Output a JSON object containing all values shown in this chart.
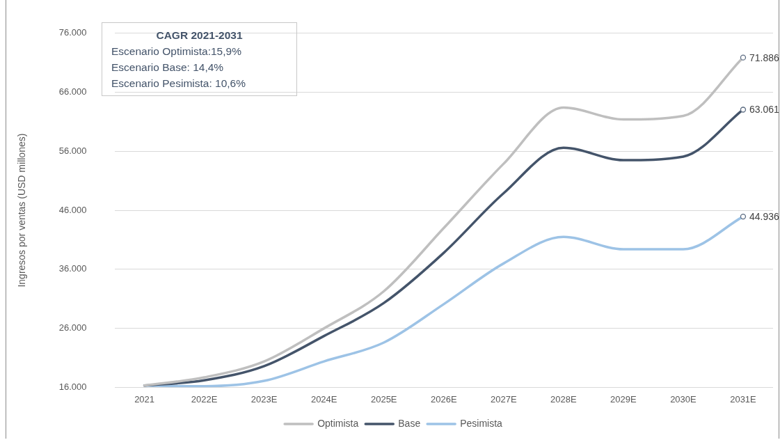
{
  "chart_data": {
    "type": "line",
    "ylabel": "Ingresos por ventas (USD millones)",
    "categories": [
      "2021",
      "2022E",
      "2023E",
      "2024E",
      "2025E",
      "2026E",
      "2027E",
      "2028E",
      "2029E",
      "2030E",
      "2031E"
    ],
    "series": [
      {
        "name": "Optimista",
        "color": "#bfbfbf",
        "values": [
          16300,
          17700,
          20400,
          26000,
          32300,
          43000,
          53900,
          63400,
          61400,
          62000,
          71886
        ],
        "value_labels": [
          null,
          null,
          null,
          null,
          null,
          null,
          null,
          null,
          null,
          null,
          "71.886"
        ]
      },
      {
        "name": "Base",
        "color": "#44546a",
        "values": [
          16300,
          17200,
          19600,
          24700,
          30300,
          38800,
          48900,
          56600,
          54500,
          55100,
          63061
        ],
        "value_labels": [
          null,
          null,
          null,
          null,
          null,
          null,
          null,
          null,
          null,
          null,
          "63.061"
        ]
      },
      {
        "name": "Pesimista",
        "color": "#9dc3e6",
        "values": [
          16300,
          16200,
          17100,
          20400,
          23600,
          30100,
          37000,
          41500,
          39400,
          39400,
          44936
        ],
        "value_labels": [
          null,
          null,
          null,
          null,
          null,
          null,
          null,
          null,
          null,
          null,
          "44.936"
        ]
      }
    ],
    "ylim": [
      16000,
      76000
    ],
    "yticks": [
      {
        "value": 16000,
        "label": "16.000"
      },
      {
        "value": 26000,
        "label": "26.000"
      },
      {
        "value": 36000,
        "label": "36.000"
      },
      {
        "value": 46000,
        "label": "46.000"
      },
      {
        "value": 56000,
        "label": "56.000"
      },
      {
        "value": 66000,
        "label": "66.000"
      },
      {
        "value": 76000,
        "label": "76.000"
      }
    ],
    "grid": "y",
    "legend": "bottom",
    "line_style": "solid",
    "annotations": [
      "CAGR 2021-2031",
      "Escenario Optimista:15,9%",
      "Escenario Base: 14,4%",
      "Escenario Pesimista: 10,6%"
    ]
  }
}
